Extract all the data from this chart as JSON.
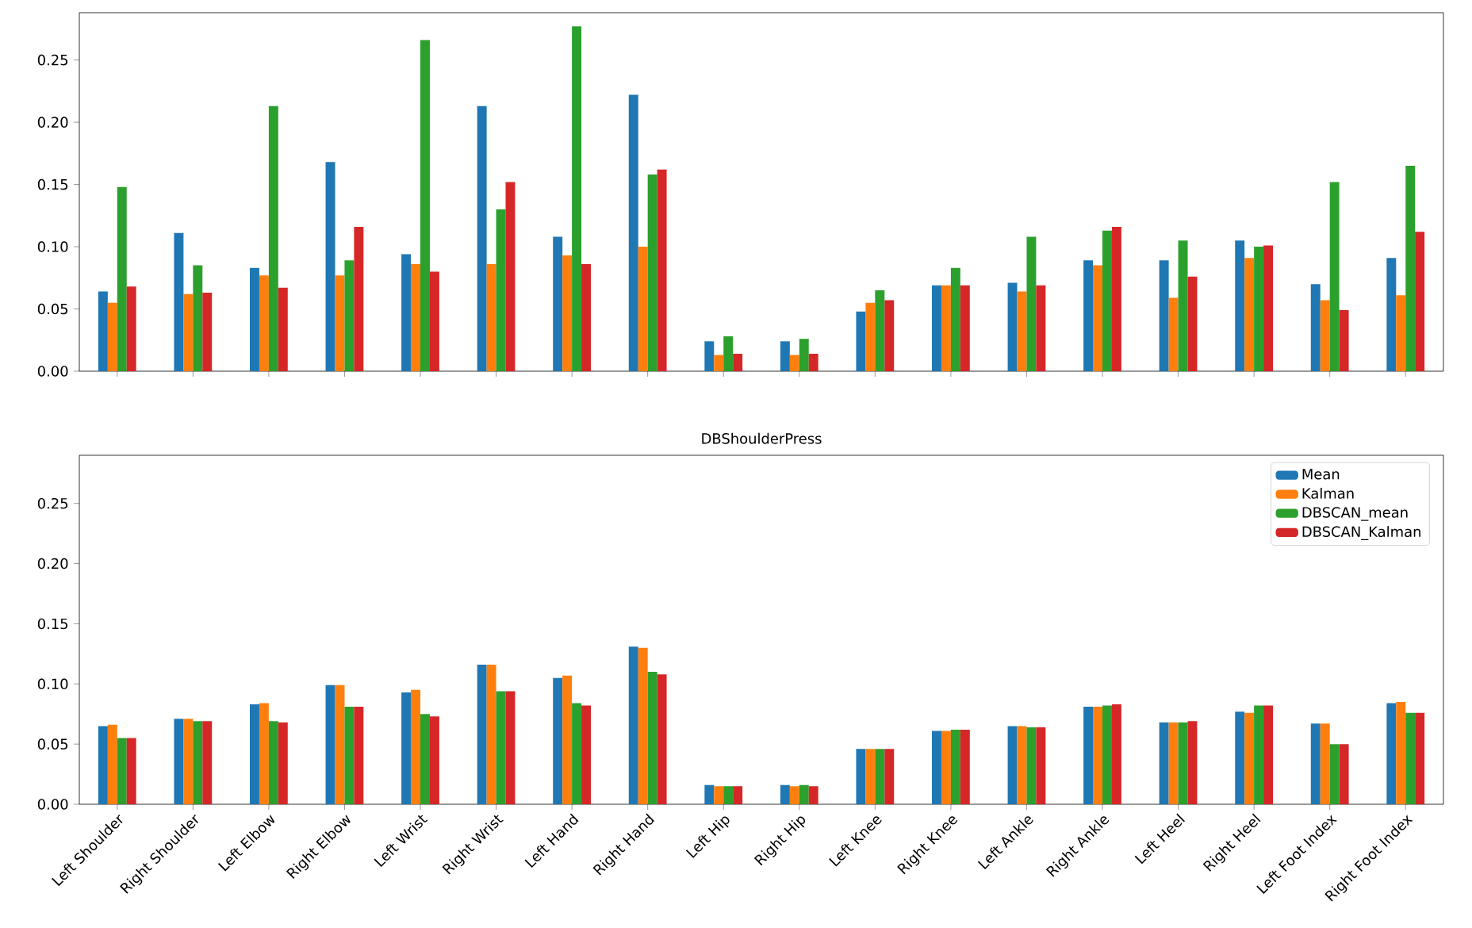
{
  "chart_data": [
    {
      "type": "bar",
      "categories": [
        null,
        null,
        null,
        null,
        null,
        null,
        null,
        null,
        null,
        null,
        null,
        null,
        null,
        null,
        null,
        null,
        null,
        null
      ],
      "series": [
        {
          "color": "#1f77b4",
          "values": [
            0.064,
            0.111,
            0.083,
            0.168,
            0.094,
            0.213,
            0.108,
            0.222,
            0.024,
            0.024,
            0.048,
            0.069,
            0.071,
            0.089,
            0.089,
            0.105,
            0.07,
            0.091
          ]
        },
        {
          "color": "#ff7f0e",
          "values": [
            0.055,
            0.062,
            0.077,
            0.077,
            0.086,
            0.086,
            0.093,
            0.1,
            0.013,
            0.013,
            0.055,
            0.069,
            0.064,
            0.085,
            0.059,
            0.091,
            0.057,
            0.061
          ]
        },
        {
          "color": "#2ca02c",
          "values": [
            0.148,
            0.085,
            0.213,
            0.089,
            0.266,
            0.13,
            0.277,
            0.158,
            0.028,
            0.026,
            0.065,
            0.083,
            0.108,
            0.113,
            0.105,
            0.1,
            0.152,
            0.165
          ]
        },
        {
          "color": "#d62728",
          "values": [
            0.068,
            0.063,
            0.067,
            0.116,
            0.08,
            0.152,
            0.086,
            0.162,
            0.014,
            0.014,
            0.057,
            0.069,
            0.069,
            0.116,
            0.076,
            0.101,
            0.049,
            0.112
          ]
        }
      ],
      "ylim": [
        0,
        0.288
      ],
      "yticks": [
        {
          "value": 0,
          "label": "0.00"
        },
        {
          "value": 0.05,
          "label": "0.05"
        },
        {
          "value": 0.1,
          "label": "0.10"
        },
        {
          "value": 0.15,
          "label": "0.15"
        },
        {
          "value": 0.2,
          "label": "0.20"
        },
        {
          "value": 0.25,
          "label": "0.25"
        }
      ],
      "tick_labels": "y",
      "grid": false,
      "legend": false
    },
    {
      "type": "bar",
      "title": "DBShoulderPress",
      "categories": [
        "Left Shoulder",
        "Right Shoulder",
        "Left Elbow",
        "Right Elbow",
        "Left Wrist",
        "Right Wrist",
        "Left Hand",
        "Right Hand",
        "Left Hip",
        "Right Hip",
        "Left Knee",
        "Right Knee",
        "Left Ankle",
        "Right Ankle",
        "Left Heel",
        "Right Heel",
        "Left Foot Index",
        "Right Foot Index"
      ],
      "series": [
        {
          "name": "Mean",
          "color": "#1f77b4",
          "values": [
            0.065,
            0.071,
            0.083,
            0.099,
            0.093,
            0.116,
            0.105,
            0.131,
            0.016,
            0.016,
            0.046,
            0.061,
            0.065,
            0.081,
            0.068,
            0.077,
            0.067,
            0.084
          ]
        },
        {
          "name": "Kalman",
          "color": "#ff7f0e",
          "values": [
            0.066,
            0.071,
            0.084,
            0.099,
            0.095,
            0.116,
            0.107,
            0.13,
            0.015,
            0.015,
            0.046,
            0.061,
            0.065,
            0.081,
            0.068,
            0.076,
            0.067,
            0.085
          ]
        },
        {
          "name": "DBSCAN_mean",
          "color": "#2ca02c",
          "values": [
            0.055,
            0.069,
            0.069,
            0.081,
            0.075,
            0.094,
            0.084,
            0.11,
            0.015,
            0.016,
            0.046,
            0.062,
            0.064,
            0.082,
            0.068,
            0.082,
            0.05,
            0.076
          ]
        },
        {
          "name": "DBSCAN_Kalman",
          "color": "#d62728",
          "values": [
            0.055,
            0.069,
            0.068,
            0.081,
            0.073,
            0.094,
            0.082,
            0.108,
            0.015,
            0.015,
            0.046,
            0.062,
            0.064,
            0.083,
            0.069,
            0.082,
            0.05,
            0.076
          ]
        }
      ],
      "ylim": [
        0,
        0.29
      ],
      "yticks": [
        {
          "value": 0,
          "label": "0.00"
        },
        {
          "value": 0.05,
          "label": "0.05"
        },
        {
          "value": 0.1,
          "label": "0.10"
        },
        {
          "value": 0.15,
          "label": "0.15"
        },
        {
          "value": 0.2,
          "label": "0.20"
        },
        {
          "value": 0.25,
          "label": "0.25"
        }
      ],
      "grid": false,
      "legend": "top right"
    }
  ]
}
